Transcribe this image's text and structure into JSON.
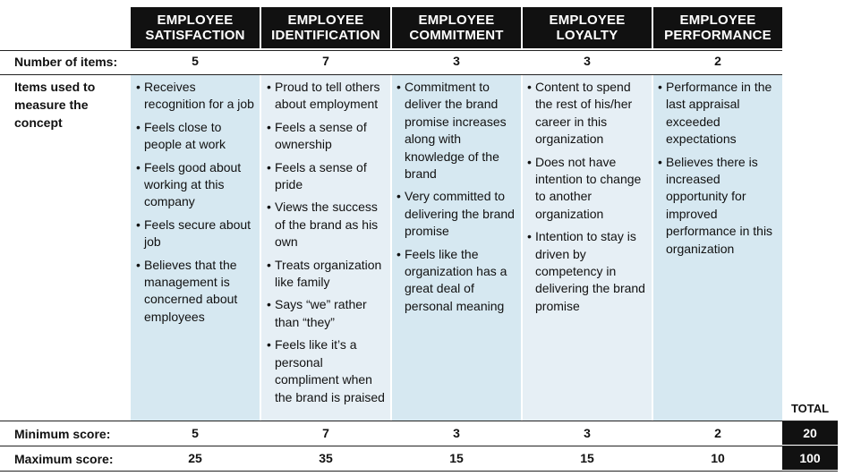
{
  "columns": [
    {
      "header_line1": "EMPLOYEE",
      "header_line2": "SATISFACTION",
      "num_items": "5",
      "min": "5",
      "max": "25",
      "items": [
        "Receives recognition for a job",
        "Feels close to people at work",
        "Feels good about working at this company",
        "Feels secure about job",
        "Believes that the management is concerned about employees"
      ]
    },
    {
      "header_line1": "EMPLOYEE",
      "header_line2": "IDENTIFICATION",
      "num_items": "7",
      "min": "7",
      "max": "35",
      "items": [
        "Proud to tell others about employment",
        "Feels a sense of ownership",
        "Feels a sense of pride",
        "Views the success of the brand as his own",
        "Treats organization like family",
        "Says “we” rather than “they”",
        "Feels like it’s a personal compliment when the brand is praised"
      ]
    },
    {
      "header_line1": "EMPLOYEE",
      "header_line2": "COMMITMENT",
      "num_items": "3",
      "min": "3",
      "max": "15",
      "items": [
        "Commitment to deliver the brand promise increases along with knowledge of the brand",
        "Very committed to delivering the brand promise",
        "Feels like the organization has a great deal of personal meaning"
      ]
    },
    {
      "header_line1": "EMPLOYEE",
      "header_line2": "LOYALTY",
      "num_items": "3",
      "min": "3",
      "max": "15",
      "items": [
        "Content to spend the rest of his/her career in this organization",
        "Does not have intention to change to another organization",
        "Intention to stay is driven by competency in delivering the brand promise"
      ]
    },
    {
      "header_line1": "EMPLOYEE",
      "header_line2": "PERFORMANCE",
      "num_items": "2",
      "min": "2",
      "max": "10",
      "items": [
        "Performance in the last appraisal exceeded expectations",
        "Believes there is increased opportunity for improved performance in this organization"
      ]
    }
  ],
  "row_labels": {
    "num_items": "Number of items:",
    "items_used_line1": "Items used to",
    "items_used_line2": "measure the",
    "items_used_line3": "concept",
    "min": "Minimum score:",
    "max": "Maximum score:"
  },
  "total": {
    "label": "TOTAL",
    "min": "20",
    "max": "100"
  },
  "colors": {
    "header": "#111111",
    "col_blue": "#d6e8f1",
    "col_light": "#e6eff5"
  }
}
